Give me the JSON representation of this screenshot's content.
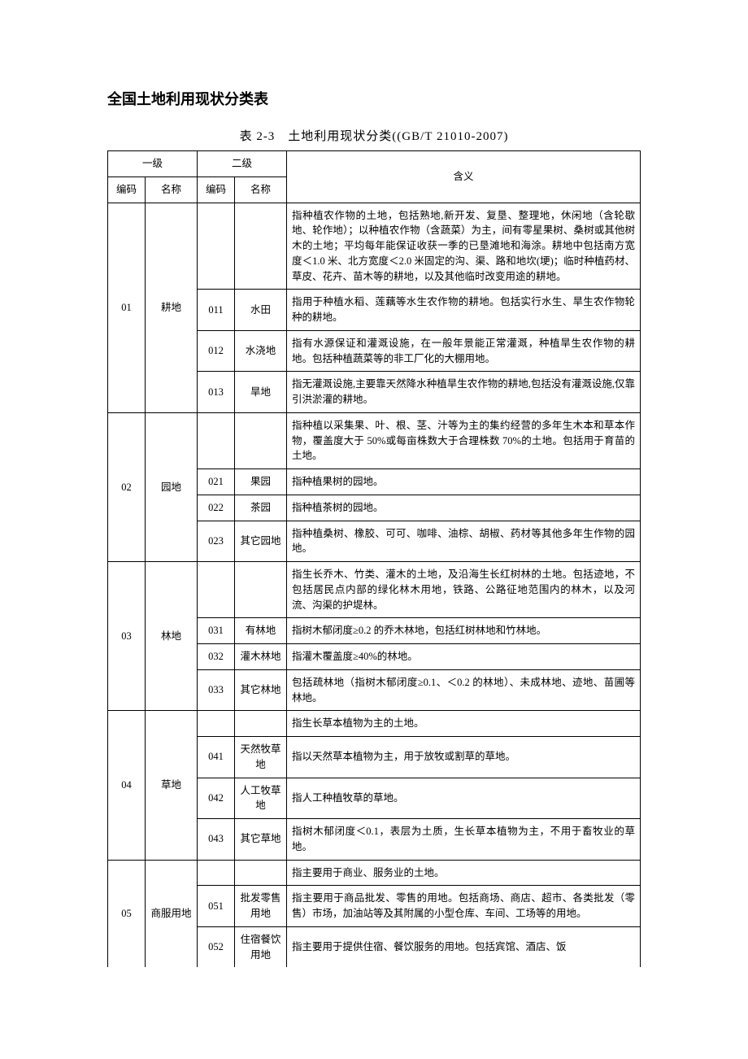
{
  "doc_title": "全国土地利用现状分类表",
  "table_title": "表 2-3　土地利用现状分类((GB/T 21010-2007)",
  "headers": {
    "level1": "一级",
    "level2": "二级",
    "code": "编码",
    "name": "名称",
    "meaning": "含义"
  },
  "categories": [
    {
      "code": "01",
      "name": "耕地",
      "intro": "指种植农作物的土地，包括熟地,新开发、复垦、整理地，休闲地（含轮歇地、轮作地）；以种植农作物（含蔬菜）为主，间有零星果树、桑树或其他树木的土地；平均每年能保证收获一季的已垦滩地和海涂。耕地中包括南方宽度＜1.0 米、北方宽度＜2.0 米固定的沟、渠、路和地坎(埂)；临时种植药材、草皮、花卉、苗木等的耕地，以及其他临时改变用途的耕地。",
      "subs": [
        {
          "code": "011",
          "name": "水田",
          "meaning": "指用于种植水稻、莲藕等水生农作物的耕地。包括实行水生、旱生农作物轮种的耕地。"
        },
        {
          "code": "012",
          "name": "水浇地",
          "meaning": "指有水源保证和灌溉设施，在一般年景能正常灌溉，种植旱生农作物的耕地。包括种植蔬菜等的非工厂化的大棚用地。"
        },
        {
          "code": "013",
          "name": "旱地",
          "meaning": "指无灌溉设施,主要靠天然降水种植旱生农作物的耕地,包括没有灌溉设施,仅靠引洪淤灌的耕地。"
        }
      ]
    },
    {
      "code": "02",
      "name": "园地",
      "intro": "指种植以采集果、叶、根、茎、汁等为主的集约经营的多年生木本和草本作物，覆盖度大于 50%或每亩株数大于合理株数 70%的土地。包括用于育苗的土地。",
      "subs": [
        {
          "code": "021",
          "name": "果园",
          "meaning": "指种植果树的园地。"
        },
        {
          "code": "022",
          "name": "茶园",
          "meaning": "指种植茶树的园地。"
        },
        {
          "code": "023",
          "name": "其它园地",
          "meaning": "指种植桑树、橡胶、可可、咖啡、油棕、胡椒、药材等其他多年生作物的园地。"
        }
      ]
    },
    {
      "code": "03",
      "name": "林地",
      "intro": "指生长乔木、竹类、灌木的土地，及沿海生长红树林的土地。包括迹地，不包括居民点内部的绿化林木用地，铁路、公路征地范围内的林木，以及河流、沟渠的护堤林。",
      "subs": [
        {
          "code": "031",
          "name": "有林地",
          "meaning": "指树木郁闭度≥0.2 的乔木林地，包括红树林地和竹林地。"
        },
        {
          "code": "032",
          "name": "灌木林地",
          "meaning": "指灌木覆盖度≥40%的林地。"
        },
        {
          "code": "033",
          "name": "其它林地",
          "meaning": "包括疏林地（指树木郁闭度≥0.1、＜0.2 的林地）、未成林地、迹地、苗圃等林地。"
        }
      ]
    },
    {
      "code": "04",
      "name": "草地",
      "intro": "指生长草本植物为主的土地。",
      "subs": [
        {
          "code": "041",
          "name": "天然牧草地",
          "meaning": "指以天然草本植物为主，用于放牧或割草的草地。"
        },
        {
          "code": "042",
          "name": "人工牧草地",
          "meaning": "指人工种植牧草的草地。"
        },
        {
          "code": "043",
          "name": "其它草地",
          "meaning": "指树木郁闭度＜0.1，表层为土质，生长草本植物为主，不用于畜牧业的草地。"
        }
      ]
    },
    {
      "code": "05",
      "name": "商服用地",
      "intro": "指主要用于商业、服务业的土地。",
      "subs": [
        {
          "code": "051",
          "name": "批发零售用地",
          "meaning": "指主要用于商品批发、零售的用地。包括商场、商店、超市、各类批发（零售）市场，加油站等及其附属的小型仓库、车间、工场等的用地。"
        },
        {
          "code": "052",
          "name": "住宿餐饮用地",
          "meaning": "指主要用于提供住宿、餐饮服务的用地。包括宾馆、酒店、饭"
        }
      ],
      "partial": true
    }
  ],
  "colors": {
    "background": "#ffffff",
    "text": "#000000",
    "border": "#000000"
  },
  "fonts": {
    "family": "SimSun",
    "title_size_pt": 15,
    "table_title_size_pt": 12,
    "body_size_pt": 10
  }
}
